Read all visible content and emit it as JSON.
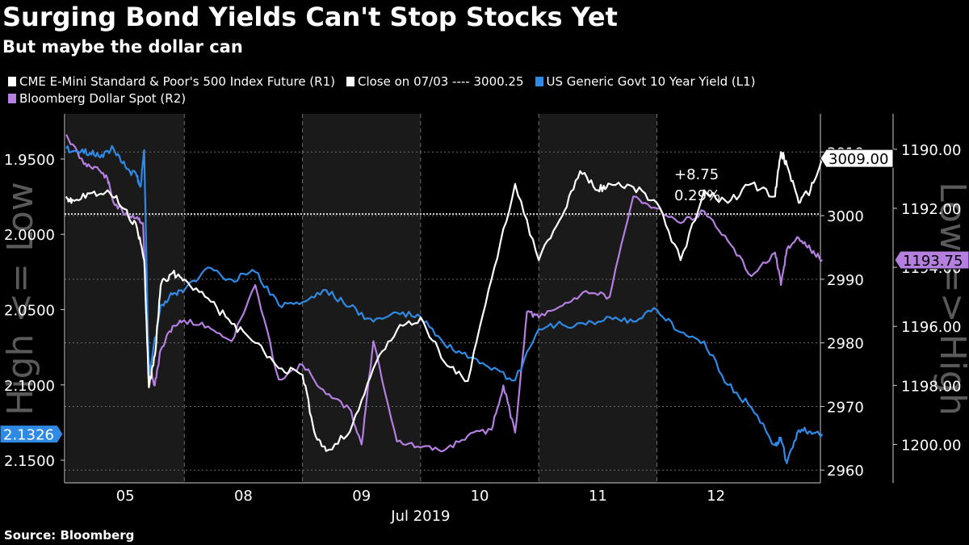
{
  "title": "Surging Bond Yields Can't Stop Stocks Yet",
  "subtitle": "But maybe the dollar can",
  "source": "Source: Bloomberg",
  "colors": {
    "background": "#000000",
    "shade": "#1a1a1a",
    "sp500": "#ffffff",
    "yield": "#2f8ae6",
    "dollar": "#b57fe0",
    "grid": "#6b6b6b"
  },
  "legend": [
    {
      "label": "CME E-Mini Standard & Poor's 500 Index Future  (R1)",
      "color": "#ffffff"
    },
    {
      "label": "Close on 07/03 ---- 3000.25",
      "color": "#ffffff"
    },
    {
      "label": "US Generic Govt 10 Year Yield  (L1)",
      "color": "#2f8ae6"
    },
    {
      "label": "Bloomberg Dollar Spot  (R2)",
      "color": "#b57fe0"
    }
  ],
  "chart_data": {
    "type": "line",
    "title": "Surging Bond Yields Can't Stop Stocks Yet",
    "xlabel": "Jul 2019",
    "x_ticks": [
      "05",
      "08",
      "09",
      "10",
      "11",
      "12"
    ],
    "left_axis": {
      "label": "High <= Low",
      "ticks": [
        "1.9500",
        "2.0000",
        "2.0500",
        "2.1000",
        "2.1500"
      ],
      "range": [
        1.92,
        2.165
      ],
      "inverted": true,
      "last_value": "2.1326"
    },
    "right1_axis": {
      "ticks": [
        "2960",
        "2970",
        "2980",
        "2990",
        "3000",
        "3010"
      ],
      "range": [
        2958,
        3016
      ],
      "last_value": "3009.00"
    },
    "right2_axis": {
      "label": "Low => High",
      "ticks": [
        "1190.00",
        "1192.00",
        "1194.00",
        "1196.00",
        "1198.00",
        "1200.00"
      ],
      "range": [
        1188.8,
        1201.3
      ],
      "inverted": true,
      "last_value": "1193.75"
    },
    "reference_line": {
      "label": "Close on 07/03",
      "value": 3000.25
    },
    "annotation": {
      "change": "+8.75",
      "percent": "0.29%"
    },
    "series": [
      {
        "name": "CME E-Mini Standard & Poor's 500 Index Future",
        "axis": "R1",
        "x": [
          0,
          0.05,
          0.2,
          0.35,
          0.5,
          0.6,
          0.66,
          0.7,
          0.75,
          0.8,
          0.9,
          1.0,
          1.2,
          1.4,
          1.6,
          1.8,
          2.0,
          2.1,
          2.2,
          2.4,
          2.6,
          2.8,
          3.0,
          3.2,
          3.4,
          3.6,
          3.8,
          4.0,
          4.2,
          4.35,
          4.5,
          4.6,
          4.8,
          5.0,
          5.2,
          5.4,
          5.6,
          5.8,
          6.0,
          6.05,
          6.1,
          6.2,
          6.3,
          6.4
        ],
        "values": [
          3003,
          3002.5,
          3003.5,
          3004,
          3001,
          2998,
          2993,
          2973,
          2978,
          2989,
          2991,
          2990,
          2987,
          2983,
          2980,
          2976,
          2975,
          2966,
          2963,
          2966,
          2976,
          2982,
          2984,
          2977,
          2974,
          2990,
          3005,
          2993,
          3000,
          3007,
          3004,
          3005,
          3004.5,
          3002,
          2993,
          3004,
          3002,
          3005,
          3003,
          3010,
          3008,
          3002,
          3004,
          3009
        ]
      },
      {
        "name": "US Generic Govt 10 Year Yield",
        "axis": "L1",
        "x": [
          0,
          0.1,
          0.2,
          0.3,
          0.4,
          0.5,
          0.6,
          0.63,
          0.66,
          0.7,
          0.8,
          0.9,
          1.0,
          1.2,
          1.4,
          1.6,
          1.8,
          2.0,
          2.2,
          2.4,
          2.6,
          2.8,
          3.0,
          3.2,
          3.4,
          3.6,
          3.8,
          4.0,
          4.2,
          4.4,
          4.6,
          4.8,
          5.0,
          5.2,
          5.4,
          5.6,
          5.8,
          6.0,
          6.05,
          6.1,
          6.2,
          6.3,
          6.4
        ],
        "values": [
          1.943,
          1.945,
          1.946,
          1.947,
          1.943,
          1.955,
          1.962,
          1.968,
          1.944,
          2.095,
          2.047,
          2.04,
          2.037,
          2.022,
          2.03,
          2.025,
          2.047,
          2.045,
          2.037,
          2.048,
          2.058,
          2.052,
          2.055,
          2.073,
          2.082,
          2.09,
          2.097,
          2.063,
          2.06,
          2.06,
          2.055,
          2.058,
          2.05,
          2.065,
          2.071,
          2.1,
          2.115,
          2.14,
          2.135,
          2.152,
          2.13,
          2.131,
          2.1326
        ]
      },
      {
        "name": "Bloomberg Dollar Spot",
        "axis": "R2",
        "x": [
          0,
          0.15,
          0.25,
          0.35,
          0.4,
          0.5,
          0.6,
          0.65,
          0.7,
          0.75,
          0.8,
          0.9,
          1.0,
          1.2,
          1.4,
          1.6,
          1.8,
          2.0,
          2.2,
          2.4,
          2.5,
          2.6,
          2.8,
          3.0,
          3.2,
          3.4,
          3.6,
          3.7,
          3.8,
          3.9,
          4.0,
          4.2,
          4.4,
          4.6,
          4.8,
          5.0,
          5.2,
          5.4,
          5.6,
          5.8,
          6.0,
          6.05,
          6.1,
          6.2,
          6.3,
          6.4
        ],
        "values": [
          1189.5,
          1190.5,
          1190.6,
          1191,
          1191.8,
          1192.2,
          1192.3,
          1192.5,
          1197.3,
          1198,
          1196.8,
          1196,
          1195.8,
          1196,
          1196.5,
          1194.6,
          1197.8,
          1197.3,
          1198.3,
          1198.8,
          1200.0,
          1196.5,
          1199.9,
          1200.1,
          1200.2,
          1199.7,
          1199.5,
          1198.0,
          1199.6,
          1195.5,
          1195.7,
          1195.3,
          1194.8,
          1195.0,
          1191.6,
          1192.0,
          1192.5,
          1192.1,
          1193.1,
          1194.3,
          1193.5,
          1194.6,
          1193.4,
          1193.0,
          1193.4,
          1193.75
        ]
      }
    ]
  }
}
